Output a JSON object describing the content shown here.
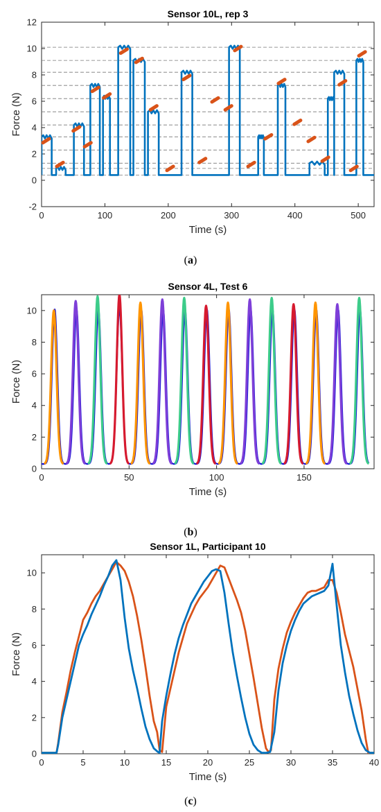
{
  "colors": {
    "blue": "#0072BD",
    "orange": "#D95319",
    "violet": "#7E3FD8",
    "amber": "#FF9500",
    "green": "#3DCC8A",
    "red": "#D61A2F",
    "navy": "#1515D6",
    "grid": "#777777",
    "axis": "#262626"
  },
  "captions": {
    "a": {
      "open": "(",
      "letter": "a",
      "close": ")"
    },
    "b": {
      "open": "(",
      "letter": "b",
      "close": ")"
    },
    "c": {
      "open": "(",
      "letter": "c",
      "close": ")"
    }
  },
  "chart_data": [
    {
      "id": "a",
      "type": "line",
      "title": "Sensor 10L, rep 3",
      "xlabel": "Time (s)",
      "ylabel": "Force (N)",
      "xlim": [
        0,
        525
      ],
      "ylim": [
        -2,
        12
      ],
      "xticks": [
        0,
        100,
        200,
        300,
        400,
        500
      ],
      "yticks": [
        -2,
        0,
        2,
        4,
        6,
        8,
        10,
        12
      ],
      "reference_lines": [
        0.4,
        0.9,
        1.3,
        2.3,
        3.3,
        4.2,
        5.2,
        6.2,
        7.2,
        8.2,
        9.1,
        10.1
      ],
      "series": [
        {
          "style": "steps",
          "color_key": "blue",
          "baseline": 0.4,
          "segments": [
            {
              "t0": 0,
              "t1": 16,
              "level": 3.3
            },
            {
              "t0": 23,
              "t1": 38,
              "level": 0.9
            },
            {
              "t0": 51,
              "t1": 67,
              "level": 4.2
            },
            {
              "t0": 77,
              "t1": 92,
              "level": 7.2
            },
            {
              "t0": 97,
              "t1": 108,
              "level": 6.3
            },
            {
              "t0": 121,
              "t1": 140,
              "level": 10.1
            },
            {
              "t0": 145,
              "t1": 163,
              "level": 9.1
            },
            {
              "t0": 168,
              "t1": 185,
              "level": 5.2
            },
            {
              "t0": 221,
              "t1": 238,
              "level": 8.2
            },
            {
              "t0": 296,
              "t1": 313,
              "level": 10.1
            },
            {
              "t0": 342,
              "t1": 351,
              "level": 3.3
            },
            {
              "t0": 373,
              "t1": 385,
              "level": 7.2
            },
            {
              "t0": 423,
              "t1": 447,
              "level": 1.3
            },
            {
              "t0": 452,
              "t1": 462,
              "level": 6.2
            },
            {
              "t0": 462,
              "t1": 478,
              "level": 8.2
            },
            {
              "t0": 497,
              "t1": 508,
              "level": 9.1
            }
          ]
        },
        {
          "style": "dashes",
          "color_key": "orange",
          "dashes": [
            {
              "t": 7,
              "level": 3.0
            },
            {
              "t": 29,
              "level": 1.2
            },
            {
              "t": 55,
              "level": 3.9
            },
            {
              "t": 73,
              "level": 2.7
            },
            {
              "t": 85,
              "level": 6.9
            },
            {
              "t": 103,
              "level": 6.4
            },
            {
              "t": 130,
              "level": 9.8
            },
            {
              "t": 154,
              "level": 9.1
            },
            {
              "t": 177,
              "level": 5.5
            },
            {
              "t": 203,
              "level": 0.9
            },
            {
              "t": 229,
              "level": 7.8
            },
            {
              "t": 254,
              "level": 1.5
            },
            {
              "t": 274,
              "level": 6.1
            },
            {
              "t": 295,
              "level": 5.5
            },
            {
              "t": 310,
              "level": 10.0
            },
            {
              "t": 331,
              "level": 1.2
            },
            {
              "t": 358,
              "level": 3.3
            },
            {
              "t": 379,
              "level": 7.5
            },
            {
              "t": 404,
              "level": 4.4
            },
            {
              "t": 426,
              "level": 3.1
            },
            {
              "t": 448,
              "level": 1.6
            },
            {
              "t": 475,
              "level": 7.4
            },
            {
              "t": 493,
              "level": 0.9
            },
            {
              "t": 506,
              "level": 9.6
            }
          ]
        }
      ]
    },
    {
      "id": "b",
      "type": "line",
      "title": "Sensor 4L, Test 6",
      "xlabel": "Time (s)",
      "ylabel": "Force (N)",
      "xlim": [
        0,
        190
      ],
      "ylim": [
        0,
        11
      ],
      "xticks": [
        0,
        50,
        100,
        150
      ],
      "yticks": [
        0,
        2,
        4,
        6,
        8,
        10
      ],
      "reference_series": {
        "color_key": "navy",
        "peaks": [
          7.5,
          20,
          32.5,
          44.5,
          57,
          69.5,
          82,
          94.5,
          107,
          119.5,
          132,
          144.5,
          157,
          169.5,
          182
        ]
      },
      "pulses": [
        {
          "peak_time": 7,
          "peak_force": 10.0,
          "color_key": "amber"
        },
        {
          "peak_time": 19.5,
          "peak_force": 10.6,
          "color_key": "violet"
        },
        {
          "peak_time": 32,
          "peak_force": 10.9,
          "color_key": "green"
        },
        {
          "peak_time": 44.5,
          "peak_force": 11.0,
          "color_key": "red"
        },
        {
          "peak_time": 56.5,
          "peak_force": 10.5,
          "color_key": "amber"
        },
        {
          "peak_time": 69,
          "peak_force": 10.7,
          "color_key": "violet"
        },
        {
          "peak_time": 81.5,
          "peak_force": 10.8,
          "color_key": "green"
        },
        {
          "peak_time": 94,
          "peak_force": 10.3,
          "color_key": "red"
        },
        {
          "peak_time": 106.5,
          "peak_force": 10.5,
          "color_key": "amber"
        },
        {
          "peak_time": 119,
          "peak_force": 10.7,
          "color_key": "violet"
        },
        {
          "peak_time": 131.5,
          "peak_force": 10.8,
          "color_key": "green"
        },
        {
          "peak_time": 144,
          "peak_force": 10.4,
          "color_key": "red"
        },
        {
          "peak_time": 156.5,
          "peak_force": 10.5,
          "color_key": "amber"
        },
        {
          "peak_time": 169,
          "peak_force": 10.4,
          "color_key": "violet"
        },
        {
          "peak_time": 181.5,
          "peak_force": 10.8,
          "color_key": "green"
        }
      ]
    },
    {
      "id": "c",
      "type": "line",
      "title": "Sensor 1L, Participant 10",
      "xlabel": "Time (s)",
      "ylabel": "Force (N)",
      "xlim": [
        0,
        40
      ],
      "ylim": [
        0,
        11
      ],
      "xticks": [
        0,
        5,
        10,
        15,
        20,
        25,
        30,
        35,
        40
      ],
      "yticks": [
        0,
        2,
        4,
        6,
        8,
        10
      ],
      "series": [
        {
          "color_key": "orange",
          "x": [
            0,
            1.8,
            2,
            2.5,
            3,
            3.5,
            4,
            4.5,
            5,
            5.5,
            6,
            6.5,
            7,
            7.5,
            8,
            8.5,
            9,
            9.5,
            10,
            10.5,
            11,
            11.5,
            12,
            12.5,
            13,
            13.5,
            13.9,
            14.2,
            14.5,
            15,
            15.5,
            16,
            16.5,
            17,
            17.5,
            18,
            18.5,
            19,
            19.5,
            20,
            20.5,
            21,
            21.5,
            22,
            22.5,
            23,
            23.5,
            24,
            24.5,
            25,
            25.5,
            26,
            26.5,
            27,
            27.3,
            27.6,
            28,
            28.5,
            29,
            29.5,
            30,
            30.5,
            31,
            31.5,
            32,
            32.5,
            33,
            33.5,
            34,
            34.5,
            35,
            35.5,
            36,
            36.5,
            37,
            37.5,
            38,
            38.5,
            39,
            39.3,
            40
          ],
          "y": [
            0.05,
            0.05,
            0.6,
            2.3,
            3.4,
            4.6,
            5.6,
            6.5,
            7.4,
            7.8,
            8.3,
            8.7,
            9.0,
            9.4,
            9.8,
            10.2,
            10.6,
            10.4,
            10.1,
            9.5,
            8.7,
            7.6,
            6.3,
            4.8,
            3.2,
            1.8,
            1.2,
            0.2,
            0.1,
            2.6,
            3.6,
            4.6,
            5.6,
            6.4,
            7.2,
            7.7,
            8.2,
            8.6,
            8.9,
            9.2,
            9.6,
            10.0,
            10.4,
            10.3,
            9.7,
            9.1,
            8.5,
            7.8,
            6.8,
            5.5,
            4.2,
            2.8,
            1.4,
            0.3,
            0.1,
            0.2,
            3.0,
            4.7,
            5.8,
            6.7,
            7.3,
            7.8,
            8.2,
            8.6,
            8.9,
            9.0,
            9.0,
            9.1,
            9.2,
            9.6,
            9.6,
            8.9,
            7.8,
            6.6,
            5.7,
            4.8,
            3.6,
            2.4,
            0.8,
            0.05,
            0.05
          ]
        },
        {
          "color_key": "blue",
          "x": [
            0,
            1.8,
            2,
            2.5,
            3,
            3.5,
            4,
            4.5,
            5,
            5.5,
            6,
            6.5,
            7,
            7.5,
            8,
            8.5,
            9,
            9.5,
            10,
            10.5,
            11,
            11.5,
            12,
            12.5,
            13,
            13.5,
            14,
            14.2,
            14.5,
            15,
            15.5,
            16,
            16.5,
            17,
            17.5,
            18,
            18.5,
            19,
            19.5,
            20,
            20.5,
            21,
            21.5,
            22,
            22.5,
            23,
            23.5,
            24,
            24.5,
            25,
            25.5,
            26,
            26.5,
            27,
            27.5,
            28,
            28.5,
            29,
            29.5,
            30,
            30.5,
            31,
            31.5,
            32,
            32.5,
            33,
            33.5,
            34,
            34.5,
            35,
            35.5,
            36,
            36.5,
            37,
            37.5,
            38,
            38.5,
            39,
            39.5,
            40
          ],
          "y": [
            0.05,
            0.05,
            0.5,
            2.0,
            3.0,
            4.0,
            5.0,
            6.0,
            6.6,
            7.1,
            7.7,
            8.2,
            8.7,
            9.3,
            9.8,
            10.4,
            10.7,
            9.6,
            7.5,
            5.8,
            4.6,
            3.6,
            2.5,
            1.5,
            0.8,
            0.3,
            0.1,
            0.05,
            1.8,
            3.2,
            4.4,
            5.5,
            6.4,
            7.1,
            7.7,
            8.3,
            8.7,
            9.1,
            9.5,
            9.8,
            10.1,
            10.2,
            10.1,
            8.9,
            7.2,
            5.6,
            4.3,
            3.1,
            2.0,
            1.1,
            0.5,
            0.2,
            0.05,
            0.05,
            0.1,
            1.2,
            3.5,
            5.0,
            6.0,
            6.8,
            7.4,
            7.9,
            8.3,
            8.5,
            8.7,
            8.8,
            8.9,
            9.0,
            9.3,
            10.5,
            8.2,
            6.0,
            4.5,
            3.2,
            2.2,
            1.3,
            0.6,
            0.2,
            0.05,
            0.05
          ]
        }
      ]
    }
  ]
}
